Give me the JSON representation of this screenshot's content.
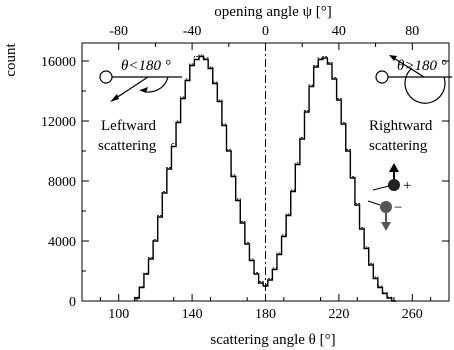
{
  "chart_data": {
    "type": "line",
    "xlabel": "scattering angle  θ [°]",
    "ylabel": "count",
    "top_xlabel": "opening angle  ψ [°]",
    "xlim": [
      80,
      280
    ],
    "ylim": [
      0,
      17200
    ],
    "top_xlim": [
      -100,
      100
    ],
    "x_ticks": [
      100,
      140,
      180,
      220,
      260
    ],
    "y_ticks": [
      0,
      4000,
      8000,
      12000,
      16000
    ],
    "top_ticks": [
      -80,
      -40,
      0,
      40,
      80
    ],
    "x_tick_labels": [
      "100",
      "140",
      "180",
      "220",
      "260"
    ],
    "y_tick_labels": [
      "0",
      "4000",
      "8000",
      "12000",
      "16000"
    ],
    "top_tick_labels": [
      "-80",
      "-40",
      "0",
      "40",
      "80"
    ],
    "grid": false,
    "vline_at": 180,
    "series": [
      {
        "style": "solid-step",
        "bin_width": 2.5,
        "x": [
          110,
          112.5,
          115,
          117.5,
          120,
          122.5,
          125,
          127.5,
          130,
          132.5,
          135,
          137.5,
          140,
          142.5,
          145,
          147.5,
          150,
          152.5,
          155,
          157.5,
          160,
          162.5,
          165,
          167.5,
          170,
          172.5,
          175,
          177.5,
          180,
          182.5,
          185,
          187.5,
          190,
          192.5,
          195,
          197.5,
          200,
          202.5,
          205,
          207.5,
          210,
          212.5,
          215,
          217.5,
          220,
          222.5,
          225,
          227.5,
          230,
          232.5,
          235,
          237.5,
          240,
          242.5,
          245,
          247.5,
          250
        ],
        "y": [
          200,
          900,
          1800,
          2800,
          4000,
          5600,
          7200,
          8800,
          10300,
          11900,
          13500,
          14700,
          15700,
          16100,
          16300,
          16100,
          15500,
          14500,
          13300,
          11700,
          10000,
          8300,
          6700,
          5200,
          3800,
          2700,
          1800,
          1200,
          1000,
          1400,
          2100,
          3100,
          4300,
          5700,
          7300,
          9100,
          10800,
          12600,
          14300,
          15600,
          16100,
          16200,
          15800,
          14800,
          13400,
          11800,
          10000,
          8200,
          6400,
          4800,
          3500,
          2400,
          1500,
          900,
          500,
          200,
          0
        ]
      },
      {
        "style": "dotted-step",
        "bin_width": 2.5,
        "x": [
          110,
          112.5,
          115,
          117.5,
          120,
          122.5,
          125,
          127.5,
          130,
          132.5,
          135,
          137.5,
          140,
          142.5,
          145,
          147.5,
          150,
          152.5,
          155,
          157.5,
          160,
          162.5,
          165,
          167.5,
          170,
          172.5,
          175,
          177.5,
          180,
          182.5,
          185,
          187.5,
          190,
          192.5,
          195,
          197.5,
          200,
          202.5,
          205,
          207.5,
          210,
          212.5,
          215,
          217.5,
          220,
          222.5,
          225,
          227.5,
          230,
          232.5,
          235,
          237.5,
          240,
          242.5,
          245,
          247.5,
          250
        ],
        "y": [
          250,
          950,
          1850,
          2900,
          4100,
          5700,
          7300,
          8900,
          10500,
          12000,
          13600,
          14800,
          15800,
          16300,
          16400,
          16200,
          15600,
          14600,
          13400,
          11800,
          10100,
          8400,
          6800,
          5300,
          3900,
          2800,
          1900,
          1300,
          1100,
          1500,
          2200,
          3200,
          4400,
          5800,
          7400,
          9200,
          10900,
          12700,
          14400,
          15700,
          16200,
          16300,
          15900,
          14900,
          13500,
          11900,
          10100,
          8300,
          6500,
          4900,
          3600,
          2500,
          1600,
          1000,
          550,
          250,
          50
        ]
      }
    ],
    "annotations": {
      "left_angle": "θ<180 °",
      "right_angle": "θ>180 °",
      "left_label_1": "Leftward",
      "left_label_2": "scattering",
      "right_label_1": "Rightward",
      "right_label_2": "scattering",
      "plus": "+",
      "minus": "−"
    }
  }
}
